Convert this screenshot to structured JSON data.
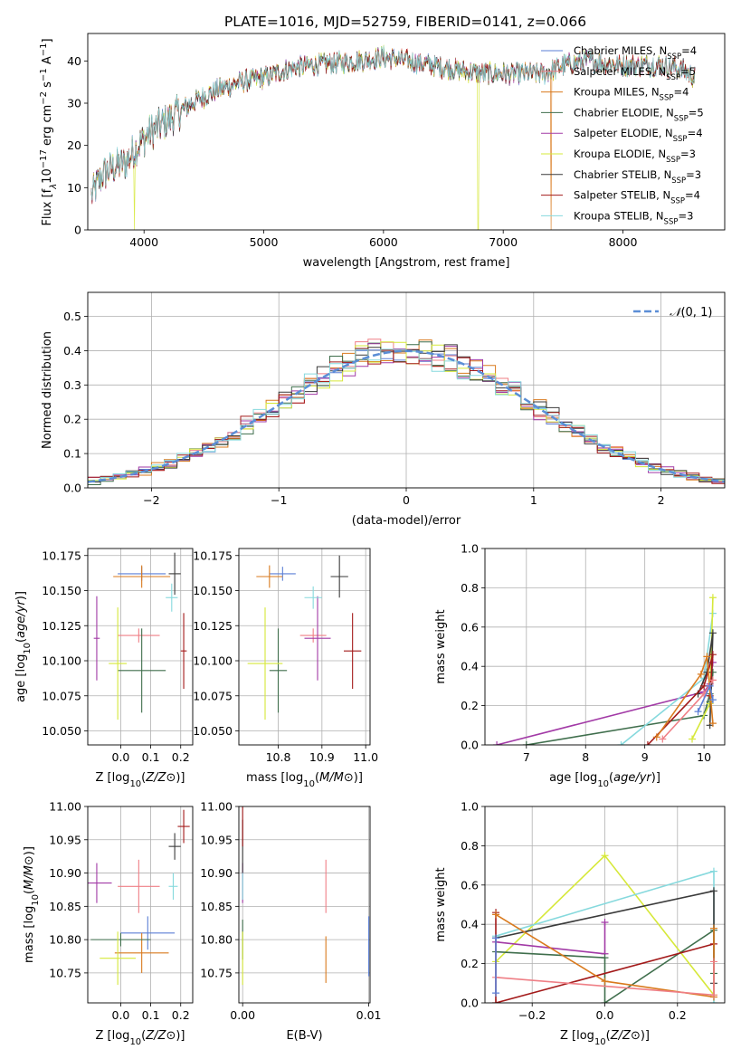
{
  "figure": {
    "title": "PLATE=1016, MJD=52759, FIBERID=0141, z=0.066"
  },
  "colors": {
    "chabrier_miles": "#5b7fd6",
    "salpeter_miles": "#ef7f86",
    "kroupa_miles": "#d97a1e",
    "chabrier_elodie": "#3f6e4c",
    "salpeter_elodie": "#a23aa6",
    "kroupa_elodie": "#d6e83a",
    "chabrier_stelib": "#3a3a3a",
    "salpeter_stelib": "#a31a1a",
    "kroupa_stelib": "#86d9dd",
    "gaussian": "#5b8ed6",
    "grid": "#b0b0b0"
  },
  "chart_data": [
    {
      "id": "spectrum",
      "type": "line",
      "xlabel": "wavelength [Angstrom, rest frame]",
      "ylabel_text": "Flux [f",
      "ylabel_parts": [
        "Flux [f",
        "λ",
        "10",
        "−17",
        " erg cm",
        "−2",
        " s",
        "−1",
        " A",
        "−1",
        "]"
      ],
      "xlim": [
        3530,
        8850
      ],
      "ylim": [
        0,
        46.5
      ],
      "xticks": [
        4000,
        5000,
        6000,
        7000,
        8000
      ],
      "yticks": [
        0,
        10,
        20,
        30,
        40
      ],
      "grid": false,
      "legend_position": "top-right",
      "series": [
        {
          "name": "Chabrier MILES, N_SSP=4",
          "label_main": "Chabrier MILES, N",
          "label_sub": "SSP",
          "label_tail": "=4",
          "color_key": "chabrier_miles"
        },
        {
          "name": "Salpeter MILES, N_SSP=5",
          "label_main": "Salpeter MILES, N",
          "label_sub": "SSP",
          "label_tail": "=5",
          "color_key": "salpeter_miles"
        },
        {
          "name": "Kroupa MILES, N_SSP=4",
          "label_main": "Kroupa MILES, N",
          "label_sub": "SSP",
          "label_tail": "=4",
          "color_key": "kroupa_miles"
        },
        {
          "name": "Chabrier ELODIE, N_SSP=5",
          "label_main": "Chabrier ELODIE, N",
          "label_sub": "SSP",
          "label_tail": "=5",
          "color_key": "chabrier_elodie"
        },
        {
          "name": "Salpeter ELODIE, N_SSP=4",
          "label_main": "Salpeter ELODIE, N",
          "label_sub": "SSP",
          "label_tail": "=4",
          "color_key": "salpeter_elodie"
        },
        {
          "name": "Kroupa ELODIE, N_SSP=3",
          "label_main": "Kroupa ELODIE, N",
          "label_sub": "SSP",
          "label_tail": "=3",
          "color_key": "kroupa_elodie"
        },
        {
          "name": "Chabrier STELIB, N_SSP=3",
          "label_main": "Chabrier STELIB, N",
          "label_sub": "SSP",
          "label_tail": "=3",
          "color_key": "chabrier_stelib"
        },
        {
          "name": "Salpeter STELIB, N_SSP=4",
          "label_main": "Salpeter STELIB, N",
          "label_sub": "SSP",
          "label_tail": "=4",
          "color_key": "salpeter_stelib"
        },
        {
          "name": "Kroupa STELIB, N_SSP=3",
          "label_main": "Kroupa STELIB, N",
          "label_sub": "SSP",
          "label_tail": "=3",
          "color_key": "kroupa_stelib"
        }
      ],
      "continuum": [
        [
          3560,
          8
        ],
        [
          3650,
          13
        ],
        [
          3750,
          15
        ],
        [
          3850,
          16
        ],
        [
          3950,
          20
        ],
        [
          4050,
          23
        ],
        [
          4150,
          25
        ],
        [
          4250,
          27
        ],
        [
          4400,
          30
        ],
        [
          4600,
          33
        ],
        [
          4800,
          35
        ],
        [
          5000,
          36
        ],
        [
          5200,
          38
        ],
        [
          5400,
          39
        ],
        [
          5600,
          39.5
        ],
        [
          5800,
          40
        ],
        [
          6000,
          41
        ],
        [
          6200,
          40
        ],
        [
          6400,
          39
        ],
        [
          6600,
          38
        ],
        [
          6800,
          37
        ],
        [
          7000,
          37
        ],
        [
          7200,
          37
        ],
        [
          7350,
          37
        ],
        [
          7500,
          39
        ],
        [
          7700,
          40
        ],
        [
          8000,
          39
        ],
        [
          8300,
          39
        ],
        [
          8500,
          38
        ],
        [
          8600,
          36
        ]
      ]
    },
    {
      "id": "residuals",
      "type": "step",
      "xlabel": "(data-model)/error",
      "ylabel": "Normed distribution",
      "xlim": [
        -2.5,
        2.5
      ],
      "ylim": [
        0,
        0.57
      ],
      "xticks": [
        -2,
        -1,
        0,
        1,
        2
      ],
      "yticks": [
        0.0,
        0.1,
        0.2,
        0.3,
        0.4,
        0.5
      ],
      "grid": true,
      "bin_width": 0.1,
      "legend_position": "top-right",
      "legend_label": "N(0, 1)"
    },
    {
      "id": "age_vs_Z",
      "type": "scatter",
      "xlabel": "Z [log10(Z/Z⊙)]",
      "ylabel": "age [log10(age/yr)]",
      "xlim": [
        -0.11,
        0.24
      ],
      "ylim": [
        10.04,
        10.18
      ],
      "xticks": [
        0.0,
        0.1,
        0.2
      ],
      "yticks": [
        10.05,
        10.075,
        10.1,
        10.125,
        10.15,
        10.175
      ],
      "grid": true,
      "points": [
        {
          "c": "chabrier_miles",
          "x": 0.07,
          "y": 10.162,
          "ex": 0.08,
          "ey": 0.005
        },
        {
          "c": "salpeter_miles",
          "x": 0.06,
          "y": 10.118,
          "ex": 0.07,
          "ey": 0.005
        },
        {
          "c": "kroupa_miles",
          "x": 0.07,
          "y": 10.16,
          "ex": 0.095,
          "ey": 0.008
        },
        {
          "c": "chabrier_elodie",
          "x": 0.07,
          "y": 10.093,
          "ex": 0.08,
          "ey": 0.03
        },
        {
          "c": "salpeter_elodie",
          "x": -0.08,
          "y": 10.116,
          "ex": 0.01,
          "ey": 0.03
        },
        {
          "c": "kroupa_elodie",
          "x": -0.01,
          "y": 10.098,
          "ex": 0.03,
          "ey": 0.04
        },
        {
          "c": "chabrier_stelib",
          "x": 0.18,
          "y": 10.162,
          "ex": 0.02,
          "ey": 0.015
        },
        {
          "c": "salpeter_stelib",
          "x": 0.21,
          "y": 10.107,
          "ex": 0.01,
          "ey": 0.027
        },
        {
          "c": "kroupa_stelib",
          "x": 0.17,
          "y": 10.145,
          "ex": 0.02,
          "ey": 0.01
        }
      ]
    },
    {
      "id": "age_vs_mass",
      "type": "scatter",
      "xlabel": "mass [log10(M/M⊙)]",
      "ylabel": "",
      "xlim": [
        10.71,
        11.01
      ],
      "ylim": [
        10.04,
        10.18
      ],
      "xticks": [
        10.8,
        10.9,
        11.0
      ],
      "yticks": [
        10.05,
        10.075,
        10.1,
        10.125,
        10.15,
        10.175
      ],
      "grid": true,
      "points": [
        {
          "c": "chabrier_miles",
          "x": 10.81,
          "y": 10.162,
          "ex": 0.03,
          "ey": 0.005
        },
        {
          "c": "salpeter_miles",
          "x": 10.88,
          "y": 10.118,
          "ex": 0.03,
          "ey": 0.005
        },
        {
          "c": "kroupa_miles",
          "x": 10.78,
          "y": 10.16,
          "ex": 0.03,
          "ey": 0.008
        },
        {
          "c": "chabrier_elodie",
          "x": 10.8,
          "y": 10.093,
          "ex": 0.02,
          "ey": 0.03
        },
        {
          "c": "salpeter_elodie",
          "x": 10.89,
          "y": 10.116,
          "ex": 0.03,
          "ey": 0.03
        },
        {
          "c": "kroupa_elodie",
          "x": 10.77,
          "y": 10.098,
          "ex": 0.04,
          "ey": 0.04
        },
        {
          "c": "chabrier_stelib",
          "x": 10.94,
          "y": 10.16,
          "ex": 0.02,
          "ey": 0.015
        },
        {
          "c": "salpeter_stelib",
          "x": 10.97,
          "y": 10.107,
          "ex": 0.02,
          "ey": 0.027
        },
        {
          "c": "kroupa_stelib",
          "x": 10.88,
          "y": 10.145,
          "ex": 0.02,
          "ey": 0.008
        }
      ]
    },
    {
      "id": "weight_vs_age",
      "type": "line",
      "xlabel": "age [log10(age/yr)]",
      "ylabel": "mass weight",
      "xlim": [
        6.3,
        10.35
      ],
      "ylim": [
        0,
        1
      ],
      "xticks": [
        7,
        8,
        9,
        10
      ],
      "yticks": [
        0.0,
        0.2,
        0.4,
        0.6,
        0.8,
        1.0
      ],
      "grid": true,
      "lines": [
        {
          "c": "salpeter_elodie",
          "pts": [
            [
              6.5,
              0.0
            ],
            [
              10.0,
              0.27
            ],
            [
              10.1,
              0.31
            ],
            [
              10.15,
              0.42
            ]
          ]
        },
        {
          "c": "chabrier_elodie",
          "pts": [
            [
              7.0,
              0.0
            ],
            [
              10.0,
              0.15
            ],
            [
              10.1,
              0.26
            ],
            [
              10.15,
              0.37
            ],
            [
              10.1,
              0.22
            ]
          ]
        },
        {
          "c": "kroupa_stelib",
          "pts": [
            [
              8.6,
              0.0
            ],
            [
              10.0,
              0.34
            ],
            [
              10.15,
              0.67
            ]
          ]
        },
        {
          "c": "kroupa_elodie",
          "pts": [
            [
              9.8,
              0.03
            ],
            [
              10.1,
              0.21
            ],
            [
              10.15,
              0.75
            ]
          ]
        },
        {
          "c": "chabrier_stelib",
          "pts": [
            [
              9.9,
              0.26
            ],
            [
              10.05,
              0.37
            ],
            [
              10.15,
              0.57
            ],
            [
              10.1,
              0.1
            ]
          ]
        },
        {
          "c": "salpeter_stelib",
          "pts": [
            [
              9.05,
              0.0
            ],
            [
              10.0,
              0.3
            ],
            [
              10.15,
              0.46
            ],
            [
              10.1,
              0.25
            ]
          ]
        },
        {
          "c": "kroupa_miles",
          "pts": [
            [
              9.2,
              0.04
            ],
            [
              9.95,
              0.36
            ],
            [
              10.05,
              0.45
            ],
            [
              10.15,
              0.11
            ]
          ]
        },
        {
          "c": "salpeter_miles",
          "pts": [
            [
              9.3,
              0.03
            ],
            [
              10.0,
              0.26
            ],
            [
              10.15,
              0.33
            ]
          ]
        },
        {
          "c": "chabrier_miles",
          "pts": [
            [
              9.9,
              0.17
            ],
            [
              10.1,
              0.3
            ],
            [
              10.15,
              0.23
            ]
          ]
        }
      ]
    },
    {
      "id": "mass_vs_Z",
      "type": "scatter",
      "xlabel": "Z [log10(Z/Z⊙)]",
      "ylabel": "mass [log10(M/M⊙)]",
      "xlim": [
        -0.11,
        0.24
      ],
      "ylim": [
        10.705,
        11.0
      ],
      "xticks": [
        0.0,
        0.1,
        0.2
      ],
      "yticks": [
        10.75,
        10.8,
        10.85,
        10.9,
        10.95,
        11.0
      ],
      "grid": true,
      "points": [
        {
          "c": "chabrier_miles",
          "x": 0.09,
          "y": 10.81,
          "ex": 0.09,
          "ey": 0.025
        },
        {
          "c": "salpeter_miles",
          "x": 0.06,
          "y": 10.88,
          "ex": 0.07,
          "ey": 0.04
        },
        {
          "c": "kroupa_miles",
          "x": 0.07,
          "y": 10.78,
          "ex": 0.09,
          "ey": 0.03
        },
        {
          "c": "chabrier_elodie",
          "x": 0.0,
          "y": 10.8,
          "ex": 0.1,
          "ey": 0.01
        },
        {
          "c": "salpeter_elodie",
          "x": -0.08,
          "y": 10.885,
          "ex": 0.05,
          "ey": 0.03
        },
        {
          "c": "kroupa_elodie",
          "x": -0.01,
          "y": 10.772,
          "ex": 0.06,
          "ey": 0.04
        },
        {
          "c": "chabrier_stelib",
          "x": 0.18,
          "y": 10.94,
          "ex": 0.02,
          "ey": 0.02
        },
        {
          "c": "salpeter_stelib",
          "x": 0.21,
          "y": 10.97,
          "ex": 0.02,
          "ey": 0.025
        },
        {
          "c": "kroupa_stelib",
          "x": 0.175,
          "y": 10.88,
          "ex": 0.015,
          "ey": 0.02
        }
      ]
    },
    {
      "id": "mass_vs_ebv",
      "type": "scatter",
      "xlabel": "E(B-V)",
      "ylabel": "",
      "xlim": [
        -0.0003,
        0.0101
      ],
      "ylim": [
        10.705,
        11.0
      ],
      "xticks": [
        0.0,
        0.01
      ],
      "xtick_labels": [
        "0.00",
        "0.01"
      ],
      "yticks": [
        10.75,
        10.8,
        10.85,
        10.9,
        10.95,
        11.0
      ],
      "grid": true,
      "points": [
        {
          "c": "chabrier_miles",
          "x": 0.01,
          "y": 10.79,
          "ex": 0,
          "ey": 0.045
        },
        {
          "c": "salpeter_miles",
          "x": 0.0066,
          "y": 10.88,
          "ex": 0,
          "ey": 0.04
        },
        {
          "c": "kroupa_miles",
          "x": 0.0066,
          "y": 10.77,
          "ex": 0,
          "ey": 0.035
        },
        {
          "c": "chabrier_elodie",
          "x": 0.0,
          "y": 10.8,
          "ex": 0,
          "ey": 0.03
        },
        {
          "c": "salpeter_elodie",
          "x": 0.0,
          "y": 10.885,
          "ex": 0,
          "ey": 0.03
        },
        {
          "c": "kroupa_elodie",
          "x": 0.0,
          "y": 10.772,
          "ex": 0,
          "ey": 0.04
        },
        {
          "c": "chabrier_stelib",
          "x": 0.0,
          "y": 10.94,
          "ex": 0,
          "ey": 0.04
        },
        {
          "c": "salpeter_stelib",
          "x": 0.0,
          "y": 10.97,
          "ex": 0,
          "ey": 0.03
        },
        {
          "c": "kroupa_stelib",
          "x": 0.0,
          "y": 10.88,
          "ex": 0,
          "ey": 0.02
        }
      ]
    },
    {
      "id": "weight_vs_Z",
      "type": "line",
      "xlabel": "Z [log10(Z/Z⊙)]",
      "ylabel": "mass weight",
      "xlim": [
        -0.33,
        0.33
      ],
      "ylim": [
        0,
        1
      ],
      "xticks": [
        -0.2,
        0.0,
        0.2
      ],
      "yticks": [
        0.0,
        0.2,
        0.4,
        0.6,
        0.8,
        1.0
      ],
      "grid": true,
      "lines": [
        {
          "c": "kroupa_elodie",
          "pts": [
            [
              -0.3,
              0.21
            ],
            [
              0.0,
              0.75
            ],
            [
              0.3,
              0.04
            ]
          ]
        },
        {
          "c": "kroupa_stelib",
          "pts": [
            [
              -0.3,
              0.34
            ],
            [
              0.3,
              0.67
            ],
            [
              0.3,
              0.0
            ]
          ]
        },
        {
          "c": "chabrier_stelib",
          "pts": [
            [
              -0.3,
              0.33
            ],
            [
              0.3,
              0.57
            ],
            [
              0.3,
              0.1
            ]
          ]
        },
        {
          "c": "salpeter_elodie",
          "pts": [
            [
              -0.3,
              0.31
            ],
            [
              0.0,
              0.25
            ],
            [
              0.0,
              0.41
            ]
          ]
        },
        {
          "c": "chabrier_elodie",
          "pts": [
            [
              -0.3,
              0.26
            ],
            [
              0.0,
              0.23
            ],
            [
              0.0,
              0.0
            ],
            [
              0.3,
              0.37
            ],
            [
              0.3,
              0.15
            ]
          ]
        },
        {
          "c": "salpeter_stelib",
          "pts": [
            [
              -0.3,
              0.46
            ],
            [
              -0.3,
              0.0
            ],
            [
              0.3,
              0.3
            ]
          ]
        },
        {
          "c": "kroupa_miles",
          "pts": [
            [
              -0.3,
              0.45
            ],
            [
              0.0,
              0.11
            ],
            [
              0.3,
              0.03
            ],
            [
              0.3,
              0.38
            ]
          ]
        },
        {
          "c": "salpeter_miles",
          "pts": [
            [
              -0.3,
              0.13
            ],
            [
              0.3,
              0.04
            ],
            [
              0.3,
              0.21
            ]
          ]
        },
        {
          "c": "chabrier_miles",
          "pts": [
            [
              -0.3,
              0.33
            ],
            [
              -0.3,
              0.05
            ]
          ]
        }
      ]
    }
  ]
}
